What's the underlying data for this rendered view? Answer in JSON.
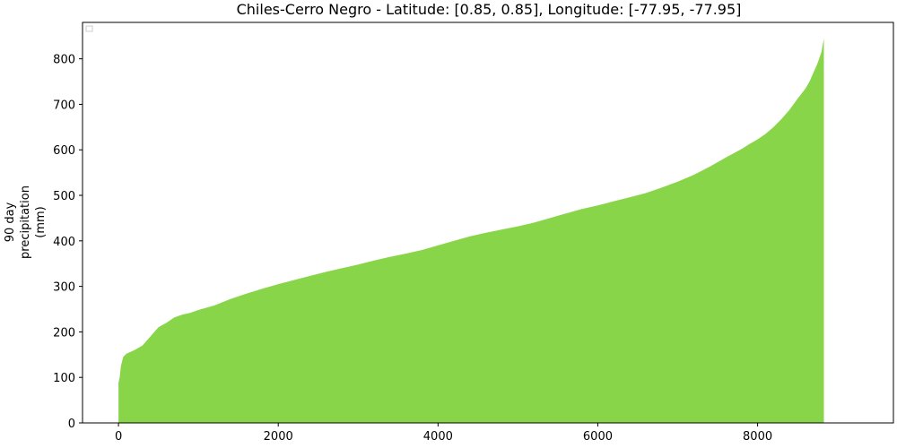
{
  "chart_data": {
    "type": "area",
    "title": "Chiles-Cerro Negro - Latitude: [0.85, 0.85], Longitude: [-77.95, -77.95]",
    "ylabel_lines": [
      "90 day",
      "precipitation",
      "(mm)"
    ],
    "xlabel": "",
    "xlim": [
      -450,
      9700
    ],
    "ylim": [
      0,
      880
    ],
    "xticks": [
      0,
      2000,
      4000,
      6000,
      8000
    ],
    "yticks": [
      0,
      100,
      200,
      300,
      400,
      500,
      600,
      700,
      800
    ],
    "fill_color": "#88d54a",
    "legend": {
      "visible": true,
      "location": "upper-left",
      "entries": []
    },
    "grid": false,
    "series": [
      {
        "points": [
          [
            0,
            88
          ],
          [
            15,
            100
          ],
          [
            30,
            125
          ],
          [
            60,
            145
          ],
          [
            100,
            152
          ],
          [
            200,
            160
          ],
          [
            300,
            170
          ],
          [
            400,
            190
          ],
          [
            500,
            210
          ],
          [
            600,
            220
          ],
          [
            700,
            232
          ],
          [
            800,
            238
          ],
          [
            900,
            242
          ],
          [
            1000,
            248
          ],
          [
            1200,
            258
          ],
          [
            1400,
            272
          ],
          [
            1600,
            284
          ],
          [
            1800,
            295
          ],
          [
            2000,
            305
          ],
          [
            2200,
            314
          ],
          [
            2400,
            323
          ],
          [
            2600,
            332
          ],
          [
            2800,
            340
          ],
          [
            3000,
            348
          ],
          [
            3200,
            357
          ],
          [
            3400,
            365
          ],
          [
            3600,
            372
          ],
          [
            3800,
            380
          ],
          [
            4000,
            390
          ],
          [
            4200,
            400
          ],
          [
            4400,
            410
          ],
          [
            4600,
            418
          ],
          [
            4800,
            425
          ],
          [
            5000,
            432
          ],
          [
            5200,
            440
          ],
          [
            5400,
            450
          ],
          [
            5600,
            460
          ],
          [
            5800,
            470
          ],
          [
            6000,
            478
          ],
          [
            6200,
            487
          ],
          [
            6400,
            496
          ],
          [
            6600,
            505
          ],
          [
            6800,
            517
          ],
          [
            7000,
            530
          ],
          [
            7200,
            545
          ],
          [
            7400,
            563
          ],
          [
            7600,
            583
          ],
          [
            7800,
            602
          ],
          [
            7900,
            613
          ],
          [
            8000,
            623
          ],
          [
            8100,
            635
          ],
          [
            8200,
            650
          ],
          [
            8300,
            668
          ],
          [
            8400,
            688
          ],
          [
            8500,
            712
          ],
          [
            8600,
            735
          ],
          [
            8650,
            750
          ],
          [
            8700,
            770
          ],
          [
            8750,
            790
          ],
          [
            8800,
            815
          ],
          [
            8820,
            835
          ],
          [
            8830,
            845
          ]
        ]
      }
    ]
  }
}
